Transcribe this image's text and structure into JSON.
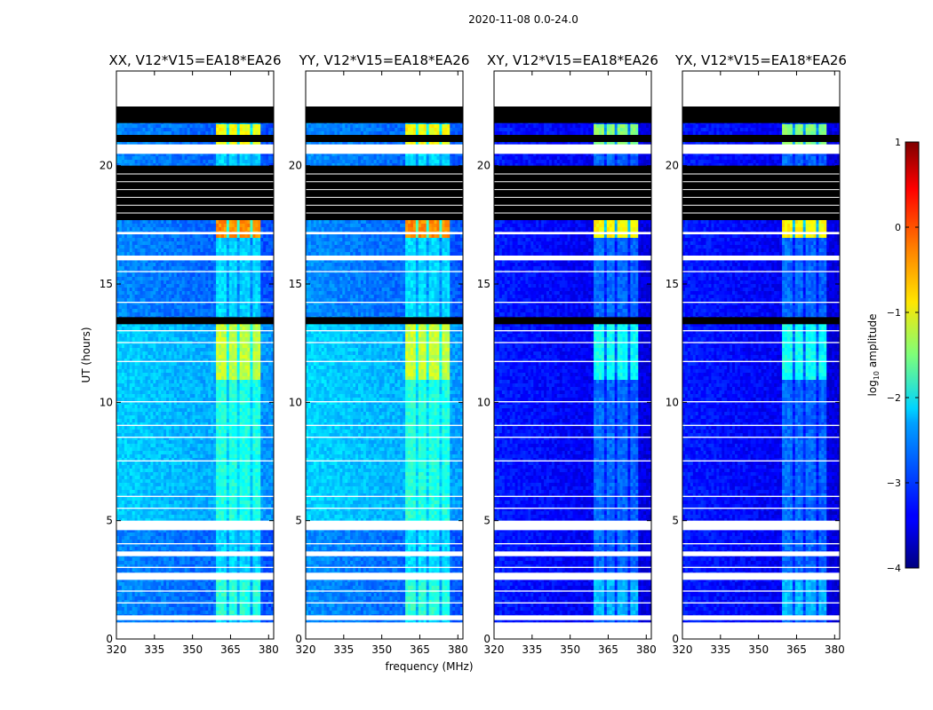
{
  "chart_data": {
    "type": "heatmap",
    "suptitle": "2020-11-08 0.0-24.0",
    "xlabel": "frequency (MHz)",
    "ylabel": "UT (hours)",
    "xlim": [
      320,
      382
    ],
    "ylim": [
      0,
      24
    ],
    "x_ticks": [
      320,
      335,
      350,
      365,
      380
    ],
    "y_ticks": [
      0,
      5,
      10,
      15,
      20
    ],
    "panels": [
      {
        "title": "XX, V12*V15=EA18*EA26",
        "level": 0.0
      },
      {
        "title": "YY, V12*V15=EA18*EA26",
        "level": 0.05
      },
      {
        "title": "XY, V12*V15=EA18*EA26",
        "level": -0.9
      },
      {
        "title": "YX, V12*V15=EA18*EA26",
        "level": -0.9
      }
    ],
    "rfi_band_mhz": [
      359,
      377
    ],
    "rfi_channels_mhz": [
      [
        359,
        364
      ],
      [
        364,
        368
      ],
      [
        368,
        373
      ],
      [
        373,
        377
      ]
    ],
    "flagged_hours_black": [
      [
        17.7,
        20.0
      ],
      [
        21.0,
        21.3
      ],
      [
        21.8,
        22.5
      ],
      [
        13.3,
        13.6
      ]
    ],
    "flagged_hours_white": [
      [
        22.5,
        24.0
      ],
      [
        20.5,
        20.9
      ],
      [
        17.1,
        17.2
      ],
      [
        16.0,
        16.2
      ],
      [
        15.5,
        15.55
      ],
      [
        14.2,
        14.25
      ],
      [
        13.0,
        13.05
      ],
      [
        12.5,
        12.55
      ],
      [
        11.7,
        11.75
      ],
      [
        10.0,
        10.05
      ],
      [
        9.0,
        9.05
      ],
      [
        8.5,
        8.55
      ],
      [
        7.5,
        7.55
      ],
      [
        6.0,
        6.05
      ],
      [
        5.5,
        5.55
      ],
      [
        4.6,
        5.0
      ],
      [
        4.0,
        4.05
      ],
      [
        3.5,
        3.7
      ],
      [
        3.0,
        3.05
      ],
      [
        2.5,
        2.8
      ],
      [
        2.0,
        2.05
      ],
      [
        1.5,
        1.55
      ],
      [
        0.8,
        1.0
      ],
      [
        0.0,
        0.7
      ]
    ],
    "colorbar": {
      "label": "log10 amplitude",
      "range": [
        -4,
        1
      ],
      "ticks": [
        "1",
        "0",
        "−1",
        "−2",
        "−3",
        "−4"
      ],
      "tick_values": [
        1,
        0,
        -1,
        -2,
        -3,
        -4
      ],
      "colormap": "jet"
    }
  }
}
